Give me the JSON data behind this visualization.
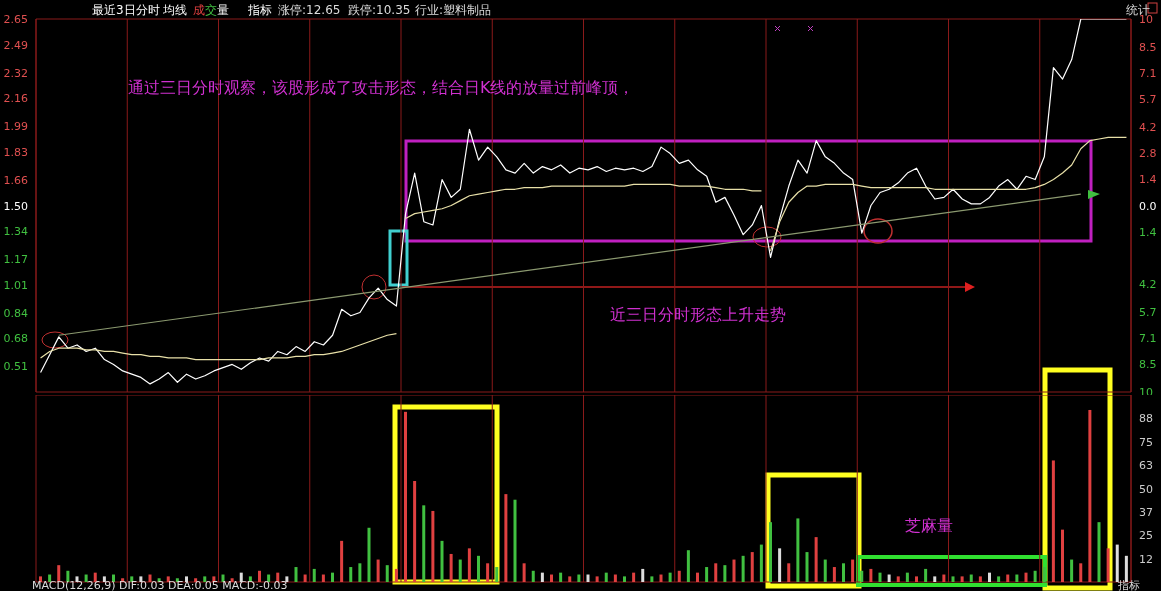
{
  "chart_data": [
    {
      "type": "line",
      "annotations": [
        "最近3日分时",
        "均线",
        "成交量",
        "指标",
        "涨停:12.65",
        "跌停:10.35",
        "行业:塑料制品",
        "统计",
        "通过三日分时观察，该股形成了攻击形态，结合日K线的放量过前峰顶，",
        "近三日分时形态上升走势"
      ],
      "categories": [
        null,
        null,
        null,
        null,
        null,
        null,
        null,
        null,
        null,
        null,
        null,
        null,
        null,
        null,
        null,
        null,
        null,
        null,
        null,
        null,
        null,
        null,
        null,
        null,
        null,
        null,
        null,
        null,
        null,
        null,
        null,
        null,
        null,
        null,
        null,
        null,
        null,
        null,
        null,
        null,
        null,
        null,
        null,
        null,
        null,
        null,
        null,
        null,
        null,
        null,
        null,
        null,
        null,
        null,
        null,
        null,
        null,
        null,
        null,
        null,
        null,
        null,
        null,
        null,
        null,
        null,
        null,
        null,
        null,
        null,
        null,
        null,
        null,
        null,
        null,
        null,
        null,
        null,
        null,
        null,
        null,
        null,
        null,
        null,
        null,
        null,
        null,
        null,
        null,
        null,
        null,
        null,
        null,
        null,
        null,
        null,
        null,
        null,
        null,
        null,
        null,
        null,
        null,
        null,
        null,
        null,
        null,
        null,
        null,
        null,
        null,
        null,
        null,
        null,
        null,
        null,
        null,
        null,
        null,
        null
      ],
      "series": [
        {
          "color": "#ffffff",
          "values": [
            0.47,
            0.58,
            0.69,
            0.62,
            0.64,
            0.6,
            0.62,
            0.55,
            0.52,
            0.48,
            0.46,
            0.44,
            0.4,
            0.43,
            0.47,
            0.41,
            0.46,
            0.43,
            0.45,
            0.48,
            0.5,
            0.52,
            0.49,
            0.53,
            0.56,
            0.54,
            0.6,
            0.58,
            0.63,
            0.6,
            0.66,
            0.64,
            0.7,
            0.86,
            0.82,
            0.84,
            0.93,
            0.99,
            0.92,
            0.88,
            1.45,
            1.7,
            1.4,
            1.38,
            1.66,
            1.55,
            1.6,
            1.97,
            1.78,
            1.86,
            1.8,
            1.72,
            1.7,
            1.76,
            1.7,
            1.74,
            1.72,
            1.75,
            1.7,
            1.73,
            1.72,
            1.74,
            1.71,
            1.73,
            1.72,
            1.73,
            1.71,
            1.74,
            1.86,
            1.82,
            1.76,
            1.78,
            1.72,
            1.68,
            1.52,
            1.55,
            1.44,
            1.32,
            1.38,
            1.5,
            1.18,
            1.42,
            1.62,
            1.78,
            1.7,
            1.9,
            1.8,
            1.76,
            1.7,
            1.66,
            1.33,
            1.5,
            1.58,
            1.6,
            1.64,
            1.7,
            1.73,
            1.62,
            1.54,
            1.55,
            1.6,
            1.54,
            1.51,
            1.51,
            1.55,
            1.62,
            1.66,
            1.6,
            1.68,
            1.66,
            1.8,
            2.35,
            2.28,
            2.4,
            2.65,
            2.65,
            2.65,
            2.65,
            2.65,
            2.65
          ]
        },
        {
          "color": "#e8e0a8",
          "values": [
            0.56,
            0.6,
            0.62,
            0.62,
            0.62,
            0.61,
            0.61,
            0.6,
            0.6,
            0.59,
            0.58,
            0.58,
            0.57,
            0.57,
            0.56,
            0.56,
            0.56,
            0.55,
            0.55,
            0.55,
            0.55,
            0.55,
            0.55,
            0.55,
            0.55,
            0.56,
            0.56,
            0.56,
            0.57,
            0.57,
            0.58,
            0.58,
            0.59,
            0.6,
            0.62,
            0.64,
            0.66,
            0.68,
            0.7,
            0.71,
            null,
            null,
            null,
            null,
            null,
            null,
            null,
            null,
            null,
            null,
            null,
            null,
            null,
            null,
            null,
            null,
            null,
            null,
            null,
            null,
            null,
            null,
            null,
            null,
            null,
            null,
            null,
            null,
            null,
            null,
            null,
            null,
            null,
            null,
            null,
            null,
            null,
            null,
            null,
            null,
            null,
            null,
            null,
            null,
            null,
            null,
            null,
            null,
            null,
            null,
            null,
            null,
            null,
            null,
            null,
            null,
            null,
            null,
            null,
            null,
            null,
            null,
            null,
            null,
            null,
            null,
            null,
            null,
            null,
            null,
            null,
            null,
            null,
            null,
            null,
            null,
            null,
            null,
            null,
            null
          ]
        },
        {
          "color": "#e8e0a8",
          "values": [
            null,
            null,
            null,
            null,
            null,
            null,
            null,
            null,
            null,
            null,
            null,
            null,
            null,
            null,
            null,
            null,
            null,
            null,
            null,
            null,
            null,
            null,
            null,
            null,
            null,
            null,
            null,
            null,
            null,
            null,
            null,
            null,
            null,
            null,
            null,
            null,
            null,
            null,
            null,
            null,
            1.42,
            1.45,
            1.46,
            1.47,
            1.48,
            1.5,
            1.53,
            1.56,
            1.57,
            1.58,
            1.59,
            1.6,
            1.6,
            1.61,
            1.61,
            1.61,
            1.62,
            1.62,
            1.62,
            1.62,
            1.62,
            1.62,
            1.62,
            1.62,
            1.62,
            1.63,
            1.63,
            1.63,
            1.63,
            1.63,
            1.62,
            1.62,
            1.62,
            1.62,
            1.61,
            1.6,
            1.6,
            1.6,
            1.59,
            1.59,
            null,
            null,
            null,
            null,
            null,
            null,
            null,
            null,
            null,
            null,
            null,
            null,
            null,
            null,
            null,
            null,
            null,
            null,
            null,
            null,
            null,
            null,
            null,
            null,
            null,
            null,
            null,
            null,
            null,
            null,
            null,
            null,
            null,
            null,
            null,
            null,
            null,
            null,
            null,
            null
          ]
        },
        {
          "color": "#e8e0a8",
          "values": [
            null,
            null,
            null,
            null,
            null,
            null,
            null,
            null,
            null,
            null,
            null,
            null,
            null,
            null,
            null,
            null,
            null,
            null,
            null,
            null,
            null,
            null,
            null,
            null,
            null,
            null,
            null,
            null,
            null,
            null,
            null,
            null,
            null,
            null,
            null,
            null,
            null,
            null,
            null,
            null,
            null,
            null,
            null,
            null,
            null,
            null,
            null,
            null,
            null,
            null,
            null,
            null,
            null,
            null,
            null,
            null,
            null,
            null,
            null,
            null,
            null,
            null,
            null,
            null,
            null,
            null,
            null,
            null,
            null,
            null,
            null,
            null,
            null,
            null,
            null,
            null,
            null,
            null,
            null,
            null,
            1.22,
            1.4,
            1.52,
            1.58,
            1.62,
            1.62,
            1.63,
            1.63,
            1.63,
            1.63,
            1.62,
            1.61,
            1.61,
            1.61,
            1.61,
            1.61,
            1.61,
            1.61,
            1.6,
            1.6,
            1.6,
            1.6,
            1.6,
            1.6,
            1.6,
            1.6,
            1.6,
            1.6,
            1.6,
            1.61,
            1.63,
            1.66,
            1.7,
            1.75,
            1.85,
            1.9,
            1.91,
            1.92,
            1.92,
            1.92
          ]
        },
        {
          "color": "#8c9a70",
          "values": [
            null,
            null,
            0.7,
            null,
            null,
            null,
            null,
            null,
            null,
            null,
            null,
            null,
            null,
            null,
            null,
            null,
            null,
            null,
            null,
            null,
            null,
            null,
            null,
            null,
            null,
            null,
            null,
            null,
            null,
            null,
            null,
            null,
            null,
            null,
            null,
            null,
            null,
            null,
            null,
            null,
            null,
            null,
            null,
            null,
            null,
            null,
            null,
            null,
            null,
            null,
            null,
            null,
            null,
            null,
            null,
            null,
            null,
            null,
            null,
            null,
            null,
            null,
            null,
            null,
            null,
            null,
            null,
            null,
            null,
            null,
            null,
            null,
            null,
            null,
            null,
            null,
            null,
            null,
            null,
            null,
            null,
            null,
            null,
            null,
            null,
            null,
            null,
            null,
            null,
            null,
            null,
            null,
            null,
            null,
            null,
            null,
            null,
            null,
            null,
            null,
            null,
            null,
            null,
            null,
            null,
            null,
            null,
            null,
            null,
            null,
            null,
            null,
            null,
            null,
            1.57,
            null,
            null,
            null,
            null,
            null
          ]
        }
      ],
      "ylim": [
        0.35,
        2.65
      ],
      "yticks": [
        2.65,
        2.49,
        2.32,
        2.16,
        1.99,
        1.83,
        1.66,
        {
          "value": 1.5,
          "label": "1.50"
        },
        1.34,
        1.17,
        1.01,
        0.84,
        0.68,
        0.51
      ],
      "y2lim": [
        -10,
        10
      ],
      "y2ticks": [
        10,
        8.5,
        7.1,
        5.7,
        4.2,
        2.8,
        1.4,
        {
          "value": 0,
          "label": "0.0"
        },
        {
          "value": -1.4,
          "label": "1.4"
        },
        {
          "value": -4.2,
          "label": "4.2"
        },
        {
          "value": -5.7,
          "label": "5.7"
        },
        {
          "value": -7.1,
          "label": "7.1"
        },
        {
          "value": -8.5,
          "label": "8.5"
        },
        {
          "value": -10,
          "label": "10"
        }
      ],
      "grid": true,
      "tick_labels": "y"
    },
    {
      "type": "bar",
      "annotations": [
        "芝麻量",
        "MACD(12,26,9)  DIF:0.03  DEA:0.05  MACD:-0.03",
        "指标"
      ],
      "categories": [
        null,
        null,
        null,
        null,
        null,
        null,
        null,
        null,
        null,
        null,
        null,
        null,
        null,
        null,
        null,
        null,
        null,
        null,
        null,
        null,
        null,
        null,
        null,
        null,
        null,
        null,
        null,
        null,
        null,
        null,
        null,
        null,
        null,
        null,
        null,
        null,
        null,
        null,
        null,
        null,
        null,
        null,
        null,
        null,
        null,
        null,
        null,
        null,
        null,
        null,
        null,
        null,
        null,
        null,
        null,
        null,
        null,
        null,
        null,
        null,
        null,
        null,
        null,
        null,
        null,
        null,
        null,
        null,
        null,
        null,
        null,
        null,
        null,
        null,
        null,
        null,
        null,
        null,
        null,
        null,
        null,
        null,
        null,
        null,
        null,
        null,
        null,
        null,
        null,
        null,
        null,
        null,
        null,
        null,
        null,
        null,
        null,
        null,
        null,
        null,
        null,
        null,
        null,
        null,
        null,
        null,
        null,
        null,
        null,
        null,
        null,
        null,
        null,
        null,
        null,
        null,
        null,
        null,
        null,
        null
      ],
      "values": [
        3,
        4,
        9,
        6,
        3,
        4,
        5,
        3,
        4,
        2,
        3,
        3,
        4,
        2,
        3,
        2,
        3,
        2,
        3,
        3,
        4,
        2,
        5,
        3,
        6,
        4,
        5,
        3,
        8,
        4,
        7,
        4,
        5,
        22,
        8,
        10,
        29,
        12,
        9,
        7,
        91,
        54,
        41,
        38,
        22,
        15,
        12,
        18,
        14,
        10,
        8,
        47,
        44,
        10,
        6,
        5,
        4,
        5,
        3,
        4,
        4,
        3,
        5,
        4,
        3,
        5,
        7,
        3,
        4,
        5,
        6,
        17,
        5,
        8,
        10,
        9,
        12,
        14,
        16,
        20,
        32,
        18,
        10,
        34,
        16,
        24,
        12,
        8,
        10,
        12,
        6,
        7,
        5,
        4,
        3,
        5,
        3,
        7,
        3,
        4,
        3,
        3,
        4,
        3,
        5,
        3,
        4,
        4,
        5,
        6,
        8,
        65,
        28,
        12,
        10,
        92,
        32,
        18,
        20,
        14
      ],
      "colors": [
        "#e04040",
        "#40c040",
        "#e04040",
        "#40c040",
        "#dddddd",
        "#40c040",
        "#e04040",
        "#dddddd",
        "#40c040",
        "#e04040",
        "#40c040",
        "#dddddd",
        "#e04040",
        "#40c040",
        "#e04040",
        "#40c040",
        "#dddddd",
        "#e04040",
        "#40c040",
        "#e04040",
        "#40c040",
        "#e04040",
        "#dddddd",
        "#40c040",
        "#e04040",
        "#40c040",
        "#e04040",
        "#dddddd",
        "#40c040",
        "#e04040",
        "#40c040",
        "#e04040",
        "#40c040",
        "#e04040",
        "#40c040",
        "#40c040",
        "#40c040",
        "#e04040",
        "#40c040",
        "#e04040",
        "#e04040",
        "#e04040",
        "#40c040",
        "#e04040",
        "#40c040",
        "#e04040",
        "#40c040",
        "#e04040",
        "#40c040",
        "#e04040",
        "#40c040",
        "#e04040",
        "#40c040",
        "#e04040",
        "#40c040",
        "#dddddd",
        "#e04040",
        "#40c040",
        "#e04040",
        "#40c040",
        "#dddddd",
        "#e04040",
        "#40c040",
        "#e04040",
        "#40c040",
        "#e04040",
        "#dddddd",
        "#40c040",
        "#e04040",
        "#40c040",
        "#e04040",
        "#40c040",
        "#e04040",
        "#40c040",
        "#e04040",
        "#40c040",
        "#e04040",
        "#40c040",
        "#e04040",
        "#40c040",
        "#40c040",
        "#dddddd",
        "#e04040",
        "#40c040",
        "#40c040",
        "#e04040",
        "#40c040",
        "#e04040",
        "#40c040",
        "#e04040",
        "#40c040",
        "#e04040",
        "#40c040",
        "#dddddd",
        "#e04040",
        "#40c040",
        "#e04040",
        "#40c040",
        "#dddddd",
        "#e04040",
        "#40c040",
        "#e04040",
        "#40c040",
        "#e04040",
        "#dddddd",
        "#40c040",
        "#e04040",
        "#40c040",
        "#e04040",
        "#40c040",
        "#40c040",
        "#e04040",
        "#e04040",
        "#40c040",
        "#e04040",
        "#e04040",
        "#40c040",
        "#e04040",
        "#dddddd",
        "#dddddd"
      ],
      "ylim": [
        0,
        100
      ],
      "yticks": [
        {
          "value": 100,
          "label": null
        },
        {
          "value": 87.5,
          "label": "88"
        },
        75,
        {
          "value": 62.5,
          "label": "63"
        },
        50,
        {
          "value": 37.5,
          "label": "37"
        },
        25,
        {
          "value": 12.5,
          "label": "12"
        }
      ],
      "grid": true,
      "tick_labels": "y"
    }
  ]
}
